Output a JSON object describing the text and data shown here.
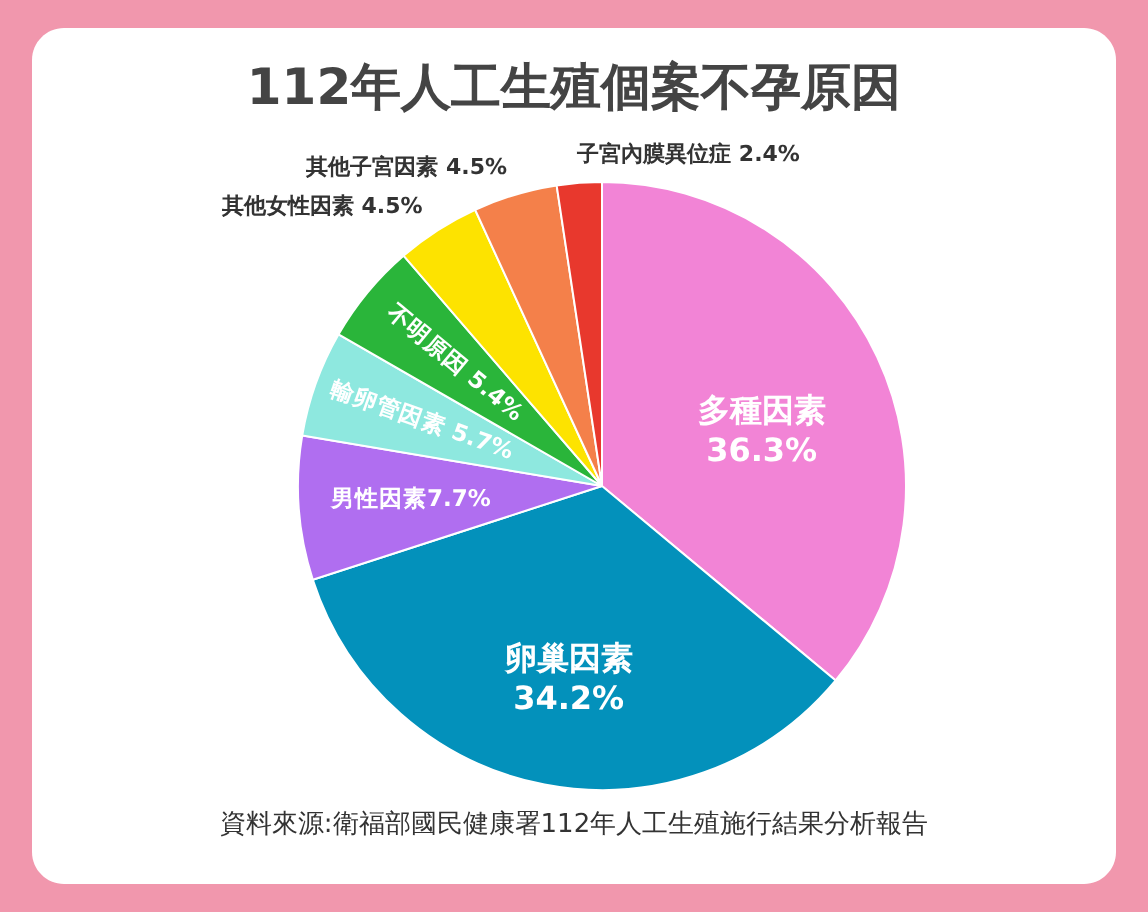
{
  "chart_data": {
    "type": "pie",
    "title": "112年人工生殖個案不孕原因",
    "categories": [
      "多種因素",
      "卵巢因素",
      "男性因素",
      "輸卵管因素",
      "不明原因",
      "其他女性因素",
      "其他子宮因素",
      "子宮內膜異位症"
    ],
    "values": [
      36.3,
      34.2,
      7.7,
      5.7,
      5.4,
      4.5,
      4.5,
      2.4
    ],
    "value_labels": [
      "36.3%",
      "34.2%",
      "7.7%",
      "5.7%",
      "5.4%",
      "4.5%",
      "4.5%",
      "2.4%"
    ],
    "colors": [
      "#f284d6",
      "#0391bb",
      "#b06ef0",
      "#8ee8df",
      "#2ab53a",
      "#fde300",
      "#f4804a",
      "#e8382d"
    ],
    "annotations": [
      "資料來源:衛福部國民健康署112年人工生殖施行結果分析報告"
    ]
  }
}
